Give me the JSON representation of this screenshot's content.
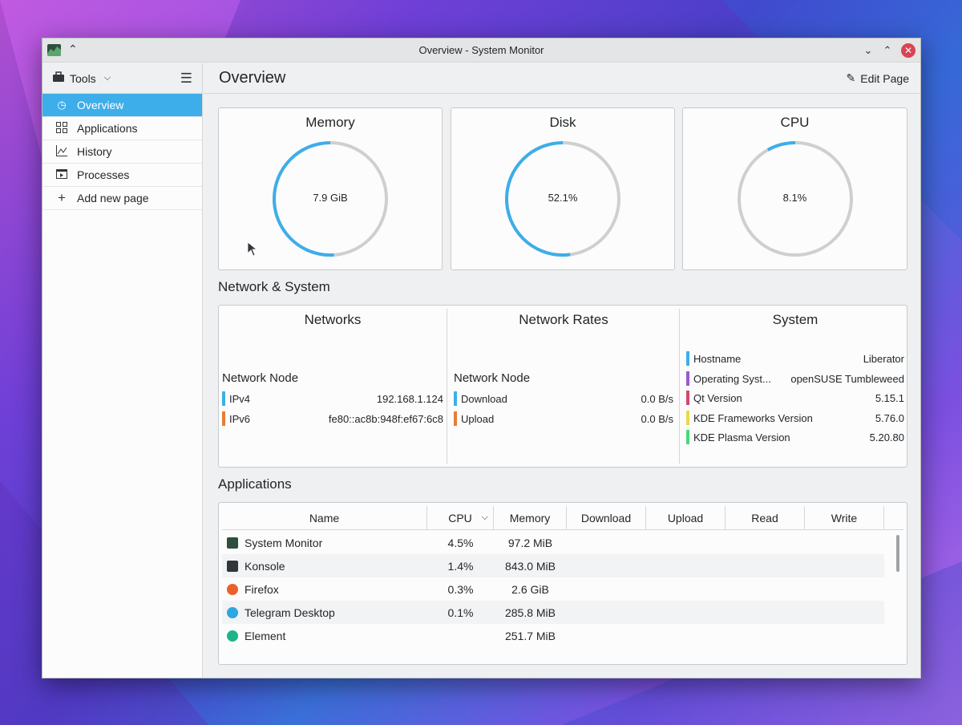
{
  "window": {
    "title": "Overview - System Monitor"
  },
  "sidebar": {
    "tools_label": "Tools",
    "items": [
      {
        "label": "Overview",
        "icon": "overview-icon"
      },
      {
        "label": "Applications",
        "icon": "grid-icon"
      },
      {
        "label": "History",
        "icon": "chart-icon"
      },
      {
        "label": "Processes",
        "icon": "process-icon"
      },
      {
        "label": "Add new page",
        "icon": "plus-icon"
      }
    ]
  },
  "header": {
    "title": "Overview",
    "edit_label": "Edit Page"
  },
  "gauges": [
    {
      "title": "Memory",
      "value": "7.9 GiB",
      "fraction": 0.51
    },
    {
      "title": "Disk",
      "value": "52.1%",
      "fraction": 0.521
    },
    {
      "title": "CPU",
      "value": "8.1%",
      "fraction": 0.081
    }
  ],
  "network_system": {
    "section_title": "Network & System",
    "networks": {
      "title": "Networks",
      "node_label": "Network Node",
      "rows": [
        {
          "key": "IPv4",
          "value": "192.168.1.124",
          "color": "#3daee9"
        },
        {
          "key": "IPv6",
          "value": "fe80::ac8b:948f:ef67:6c8",
          "color": "#e67e36"
        }
      ]
    },
    "rates": {
      "title": "Network Rates",
      "node_label": "Network Node",
      "rows": [
        {
          "key": "Download",
          "value": "0.0 B/s",
          "color": "#3daee9"
        },
        {
          "key": "Upload",
          "value": "0.0 B/s",
          "color": "#e67e36"
        }
      ]
    },
    "system": {
      "title": "System",
      "rows": [
        {
          "key": "Hostname",
          "value": "Liberator",
          "color": "#3daee9"
        },
        {
          "key": "Operating Syst...",
          "value": "openSUSE Tumbleweed",
          "color": "#9b59d0"
        },
        {
          "key": "Qt Version",
          "value": "5.15.1",
          "color": "#d04a6e"
        },
        {
          "key": "KDE Frameworks Version",
          "value": "5.76.0",
          "color": "#e8d94a"
        },
        {
          "key": "KDE Plasma Version",
          "value": "5.20.80",
          "color": "#4ad87a"
        }
      ]
    }
  },
  "applications": {
    "section_title": "Applications",
    "columns": [
      "Name",
      "CPU",
      "Memory",
      "Download",
      "Upload",
      "Read",
      "Write"
    ],
    "rows": [
      {
        "name": "System Monitor",
        "cpu": "4.5%",
        "memory": "97.2 MiB",
        "icon_color": "#2e4f3e"
      },
      {
        "name": "Konsole",
        "cpu": "1.4%",
        "memory": "843.0 MiB",
        "icon_color": "#31363b"
      },
      {
        "name": "Firefox",
        "cpu": "0.3%",
        "memory": "2.6 GiB",
        "icon_color": "#e8632a"
      },
      {
        "name": "Telegram Desktop",
        "cpu": "0.1%",
        "memory": "285.8 MiB",
        "icon_color": "#2ea6de"
      },
      {
        "name": "Element",
        "cpu": "",
        "memory": "251.7 MiB",
        "icon_color": "#1fb38a"
      }
    ]
  },
  "colors": {
    "accent": "#3daee9",
    "track": "#cfcfcf"
  }
}
